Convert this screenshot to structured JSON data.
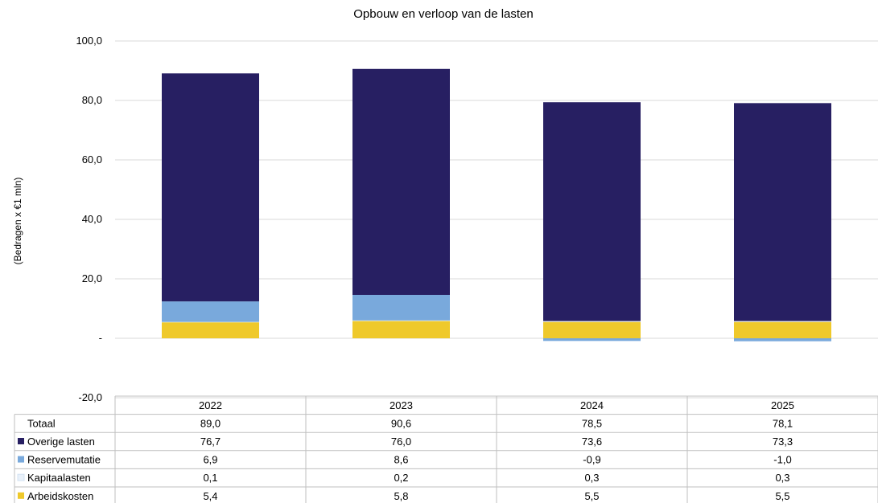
{
  "chart_data": {
    "type": "bar",
    "stacked": true,
    "title": "Opbouw en verloop van de lasten",
    "ylabel": "(Bedragen x €1 mln)",
    "xlabel": "",
    "ylim": [
      -20,
      100
    ],
    "yticks": [
      -20,
      0,
      20,
      40,
      60,
      80,
      100
    ],
    "ytick_labels": [
      "-20,0",
      "-",
      "20,0",
      "40,0",
      "60,0",
      "80,0",
      "100,0"
    ],
    "grid": true,
    "legend": "table-below",
    "categories": [
      "2022",
      "2023",
      "2024",
      "2025"
    ],
    "series": [
      {
        "name": "Arbeidskosten",
        "color": "#efc92b",
        "values": [
          5.4,
          5.8,
          5.5,
          5.5
        ],
        "labels": [
          "5,4",
          "5,8",
          "5,5",
          "5,5"
        ]
      },
      {
        "name": "Kapitaalasten",
        "color": "#e9f1fa",
        "values": [
          0.1,
          0.2,
          0.3,
          0.3
        ],
        "labels": [
          "0,1",
          "0,2",
          "0,3",
          "0,3"
        ]
      },
      {
        "name": "Reservemutatie",
        "color": "#79a9dc",
        "values": [
          6.9,
          8.6,
          -0.9,
          -1.0
        ],
        "labels": [
          "6,9",
          "8,6",
          "-0,9",
          "-1,0"
        ]
      },
      {
        "name": "Overige lasten",
        "color": "#271f62",
        "values": [
          76.7,
          76.0,
          73.6,
          73.3
        ],
        "labels": [
          "76,7",
          "76,0",
          "73,6",
          "73,3"
        ]
      }
    ],
    "total": {
      "name": "Totaal",
      "values": [
        89.0,
        90.6,
        78.5,
        78.1
      ],
      "labels": [
        "89,0",
        "90,6",
        "78,5",
        "78,1"
      ]
    },
    "table_row_order": [
      "Overige lasten",
      "Reservemutatie",
      "Kapitaalasten",
      "Arbeidskosten"
    ]
  }
}
